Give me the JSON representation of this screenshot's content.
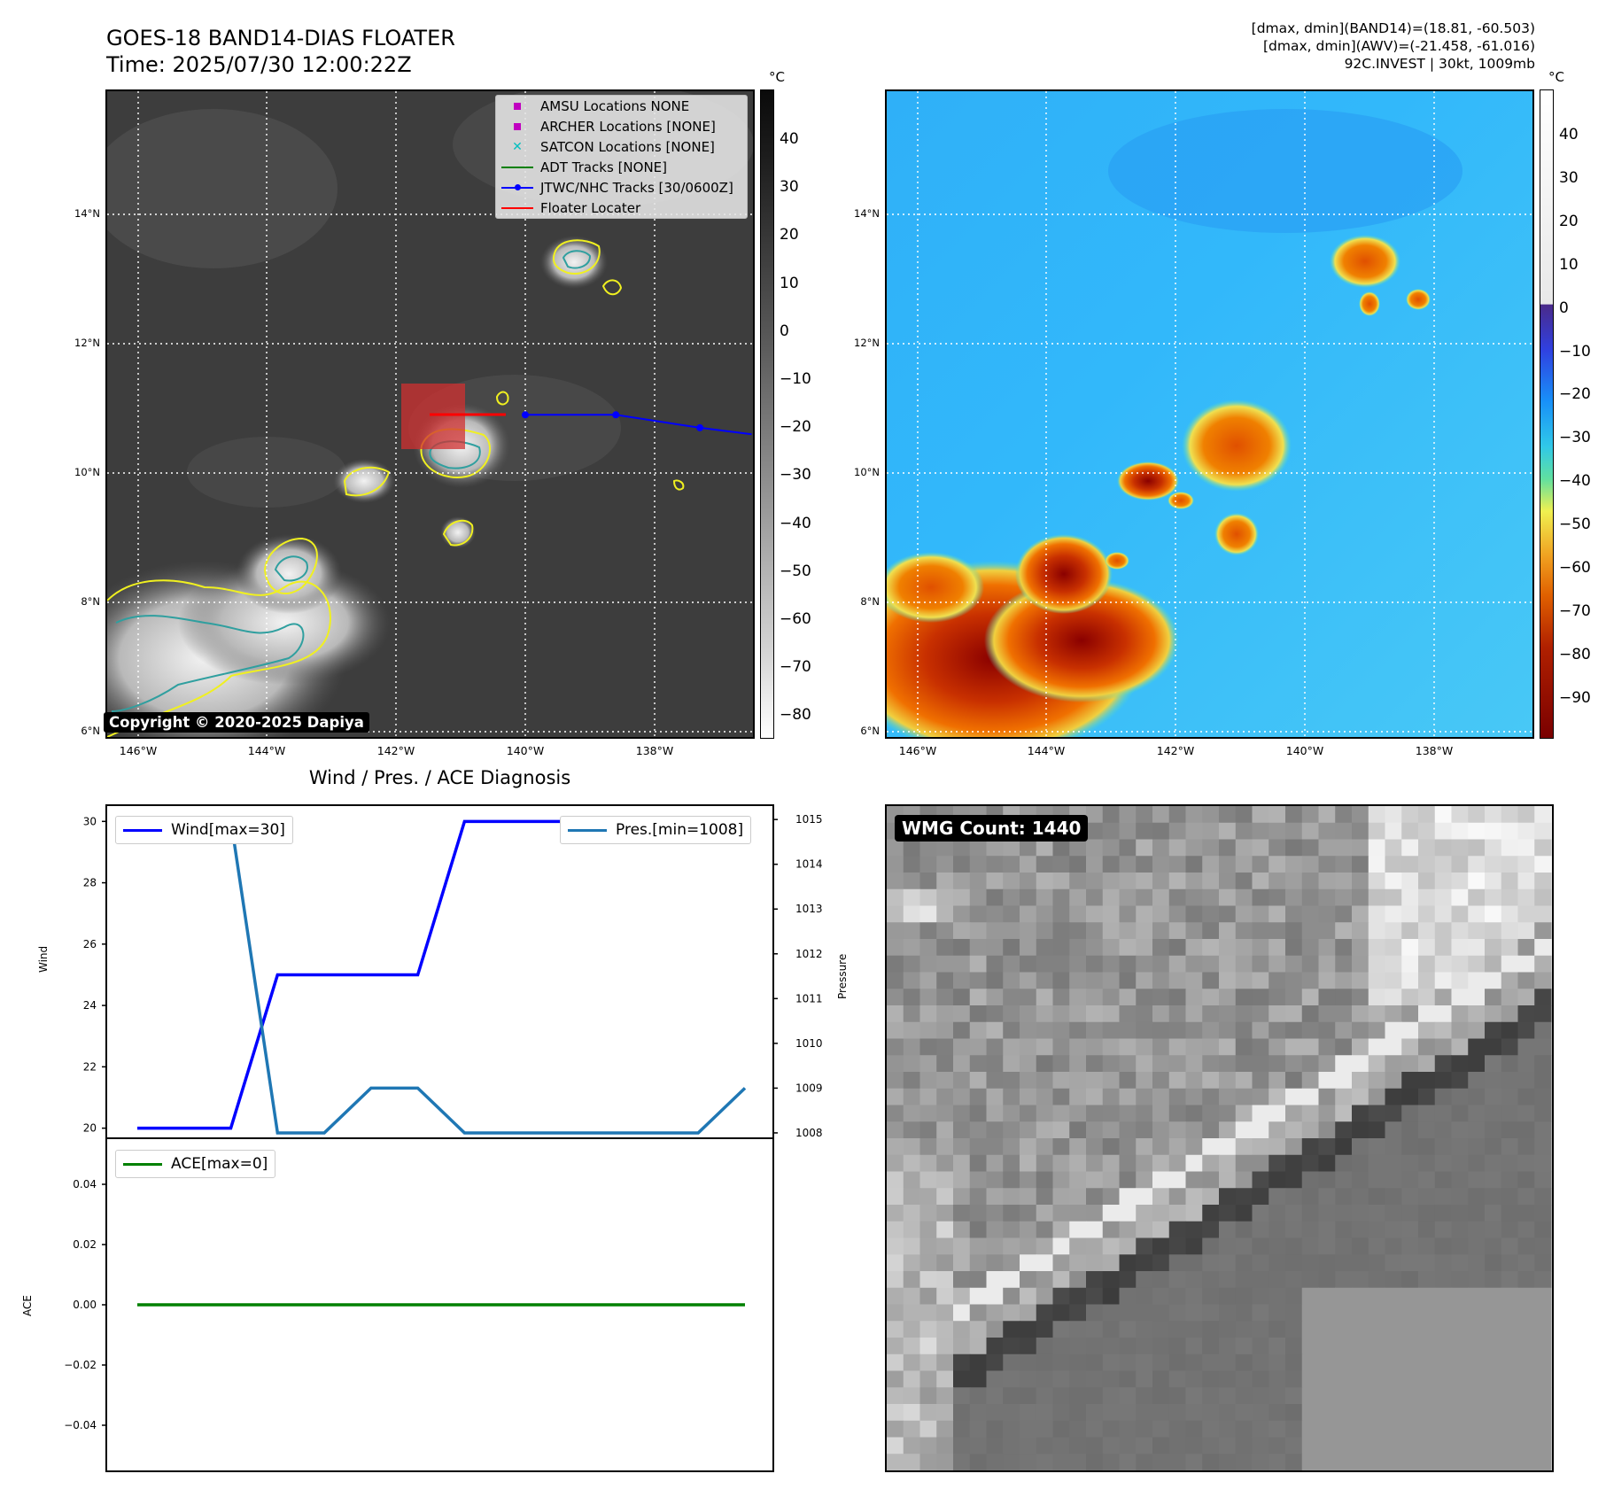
{
  "header": {
    "title_line1": "GOES-18 BAND14-DIAS FLOATER",
    "title_line2": "Time: 2025/07/30 12:00:22Z",
    "info_line1": "[dmax, dmin](BAND14)=(18.81, -60.503)",
    "info_line2": "[dmax, dmin](AWV)=(-21.458, -61.016)",
    "info_line3": "92C.INVEST | 30kt, 1009mb"
  },
  "copyright": "Copyright © 2020-2025 Dapiya",
  "map": {
    "lon_labels": [
      "146°W",
      "144°W",
      "142°W",
      "140°W",
      "138°W"
    ],
    "lat_labels": [
      "14°N",
      "12°N",
      "10°N",
      "8°N",
      "6°N"
    ],
    "colorbar_unit": "°C",
    "colorbar_left_ticks": [
      "40",
      "30",
      "20",
      "10",
      "0",
      "−10",
      "−20",
      "−30",
      "−40",
      "−50",
      "−60",
      "−70",
      "−80"
    ],
    "colorbar_right_ticks": [
      "40",
      "30",
      "20",
      "10",
      "0",
      "−10",
      "−20",
      "−30",
      "−40",
      "−50",
      "−60",
      "−70",
      "−80",
      "−90"
    ],
    "legend": [
      {
        "label": "AMSU Locations NONE",
        "color": "#c000c0",
        "symbol": "square"
      },
      {
        "label": "ARCHER Locations [NONE]",
        "color": "#c000c0",
        "symbol": "square"
      },
      {
        "label": "SATCON Locations [NONE]",
        "color": "#00bfbf",
        "symbol": "x"
      },
      {
        "label": "ADT Tracks [NONE]",
        "color": "#008000",
        "symbol": "line"
      },
      {
        "label": "JTWC/NHC Tracks [30/0600Z]",
        "color": "#0000ff",
        "symbol": "line-dot"
      },
      {
        "label": "Floater Locater",
        "color": "#ff0000",
        "symbol": "line"
      }
    ],
    "track_lons": [
      -140.0,
      -138.6,
      -137.3,
      -136.5
    ],
    "track_lats": [
      10.9,
      10.9,
      10.7,
      10.6
    ]
  },
  "diagnosis": {
    "title": "Wind / Pres. / ACE Diagnosis",
    "wind_axis_label": "Wind",
    "pressure_axis_label": "Pressure",
    "ace_axis_label": "ACE",
    "wind_legend": "Wind[max=30]",
    "pres_legend": "Pres.[min=1008]",
    "ace_legend": "ACE[max=0]",
    "wind_color": "#0000ff",
    "pres_color": "#1f77b4",
    "ace_color": "#008000"
  },
  "wmg": {
    "label": "WMG Count: 1440"
  },
  "chart_data": [
    {
      "type": "line",
      "x": [
        0,
        1,
        2,
        3,
        4,
        5,
        6,
        7,
        8,
        9,
        10,
        11,
        12,
        13
      ],
      "series": [
        {
          "name": "Wind[max=30]",
          "axis": "left",
          "values": [
            20,
            20,
            20,
            25,
            25,
            25,
            25,
            30,
            30,
            30,
            30,
            30,
            30,
            30
          ]
        },
        {
          "name": "Pres.[min=1008]",
          "axis": "right",
          "values": [
            1015,
            1015,
            1015,
            1008,
            1008,
            1009,
            1009,
            1008,
            1008,
            1008,
            1008,
            1008,
            1008,
            1009
          ]
        }
      ],
      "ylabel": "Wind",
      "y2label": "Pressure",
      "ylim": [
        19.7,
        30.5
      ],
      "y2lim": [
        1007.9,
        1015.3
      ],
      "yticks": [
        20,
        22,
        24,
        26,
        28,
        30
      ],
      "y2ticks": [
        1008,
        1009,
        1010,
        1011,
        1012,
        1013,
        1014,
        1015
      ]
    },
    {
      "type": "line",
      "x": [
        0,
        1,
        2,
        3,
        4,
        5,
        6,
        7,
        8,
        9,
        10,
        11,
        12,
        13
      ],
      "series": [
        {
          "name": "ACE[max=0]",
          "values": [
            0,
            0,
            0,
            0,
            0,
            0,
            0,
            0,
            0,
            0,
            0,
            0,
            0,
            0
          ]
        }
      ],
      "ylabel": "ACE",
      "ylim": [
        -0.055,
        0.055
      ],
      "yticks": [
        -0.04,
        -0.02,
        0.0,
        0.02,
        0.04
      ],
      "ytick_labels": [
        "−0.04",
        "−0.02",
        "0.00",
        "0.02",
        "0.04"
      ]
    }
  ]
}
